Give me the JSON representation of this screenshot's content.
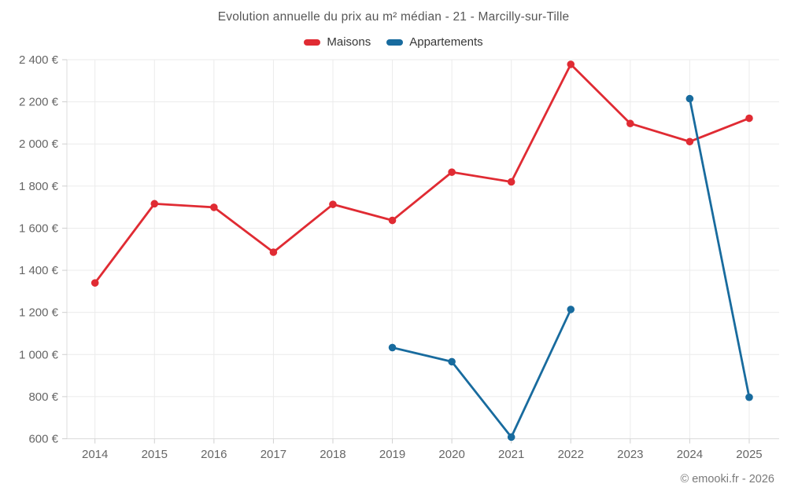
{
  "title": "Evolution annuelle du prix au m² médian - 21 - Marcilly-sur-Tille",
  "footer": "© emooki.fr - 2026",
  "chart_data": {
    "type": "line",
    "title": "Evolution annuelle du prix au m² médian - 21 - Marcilly-sur-Tille",
    "xlabel": "",
    "ylabel": "",
    "x": [
      2014,
      2015,
      2016,
      2017,
      2018,
      2019,
      2020,
      2021,
      2022,
      2023,
      2024,
      2025
    ],
    "xtick_labels": [
      "2014",
      "2015",
      "2016",
      "2017",
      "2018",
      "2019",
      "2020",
      "2021",
      "2022",
      "2023",
      "2024",
      "2025"
    ],
    "yticks": [
      600,
      800,
      1000,
      1200,
      1400,
      1600,
      1800,
      2000,
      2200,
      2400
    ],
    "ytick_labels": [
      "600 €",
      "800 €",
      "1 000 €",
      "1 200 €",
      "1 400 €",
      "1 600 €",
      "1 800 €",
      "2 000 €",
      "2 200 €",
      "2 400 €"
    ],
    "ylim": [
      600,
      2400
    ],
    "grid": true,
    "legend_position": "top",
    "series": [
      {
        "name": "Maisons",
        "color": "#e02b33",
        "values": [
          1340,
          1716,
          1699,
          1486,
          1713,
          1637,
          1866,
          1820,
          2378,
          2097,
          2011,
          2122
        ]
      },
      {
        "name": "Appartements",
        "color": "#186b9e",
        "values": [
          null,
          null,
          null,
          null,
          null,
          1033,
          966,
          608,
          1214,
          null,
          2215,
          797
        ]
      }
    ]
  }
}
